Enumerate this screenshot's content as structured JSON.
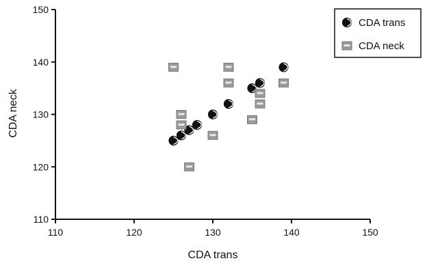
{
  "chart_data": {
    "type": "scatter",
    "xlabel": "CDA trans",
    "ylabel": "CDA neck",
    "xlim": [
      110,
      150
    ],
    "ylim": [
      110,
      150
    ],
    "x_ticks": [
      "110",
      "120",
      "130",
      "140",
      "150"
    ],
    "y_ticks": [
      "110",
      "120",
      "130",
      "140",
      "150"
    ],
    "grid": false,
    "legend_position": "top-right",
    "series": [
      {
        "name": "CDA trans",
        "marker": "half-filled-circle",
        "color": "#111111",
        "points": [
          [
            125,
            125
          ],
          [
            126,
            126
          ],
          [
            127,
            127
          ],
          [
            128,
            128
          ],
          [
            130,
            130
          ],
          [
            132,
            132
          ],
          [
            135,
            135
          ],
          [
            136,
            136
          ],
          [
            139,
            139
          ]
        ]
      },
      {
        "name": "CDA neck",
        "marker": "gray-square",
        "color": "#8a8a8a",
        "points": [
          [
            125,
            139
          ],
          [
            126,
            130
          ],
          [
            126,
            128
          ],
          [
            127,
            120
          ],
          [
            130,
            126
          ],
          [
            132,
            139
          ],
          [
            132,
            136
          ],
          [
            135,
            129
          ],
          [
            136,
            134
          ],
          [
            136,
            132
          ],
          [
            139,
            136
          ]
        ]
      }
    ]
  }
}
